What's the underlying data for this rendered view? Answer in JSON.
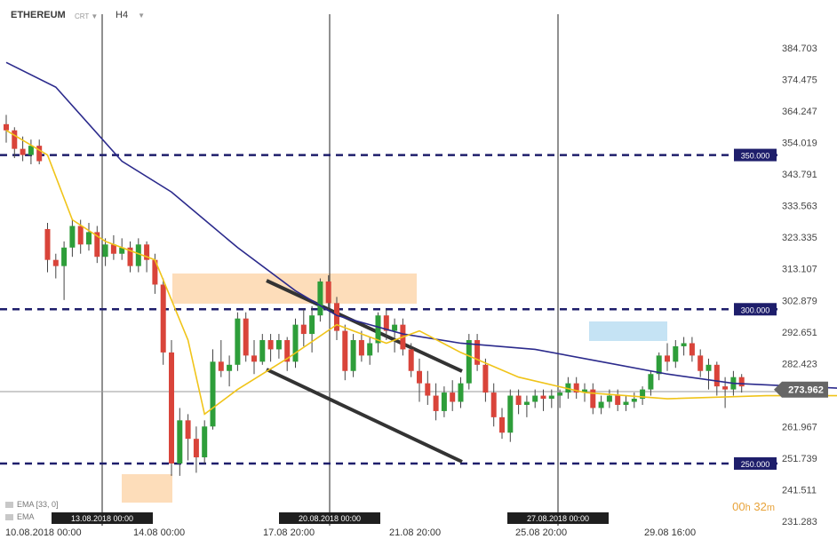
{
  "header": {
    "symbol": "ETHEREUM",
    "type": "CRT",
    "timeframe": "H4"
  },
  "indicators": [
    {
      "label": "EMA",
      "params": "[33, 0]"
    },
    {
      "label": "EMA",
      "params": ""
    }
  ],
  "timer": {
    "hours": "00",
    "h": "h",
    "minutes": "32",
    "m": "m"
  },
  "colors": {
    "bull": "#2e9e3a",
    "bear": "#d9443a",
    "ema_slow": "#2b2a8c",
    "ema_fast": "#f0c419",
    "level": "#1e1e6b",
    "zone_orange": "#fdd9b2",
    "zone_blue": "#bfe0f3",
    "current": "#666666"
  },
  "chart_data": {
    "type": "candlestick",
    "instrument": "ETHEREUM",
    "timeframe": "H4",
    "y_ticks": [
      "384.703",
      "374.475",
      "364.247",
      "354.019",
      "343.791",
      "333.563",
      "323.335",
      "313.107",
      "302.879",
      "292.651",
      "282.423",
      "273.962",
      "261.967",
      "251.739",
      "241.511",
      "231.283"
    ],
    "x_ticks": [
      "10.08.2018  00:00",
      "14.08  00:00",
      "17.08  20:00",
      "21.08  20:00",
      "25.08  20:00",
      "29.08  16:00"
    ],
    "horizontal_levels": [
      {
        "label": "350.000",
        "value": 350
      },
      {
        "label": "300.000",
        "value": 300
      },
      {
        "label": "250.000",
        "value": 250
      }
    ],
    "current_price": {
      "label": "273.962",
      "value": 273.962
    },
    "vertical_markers": [
      "13.08.2018 00:00",
      "20.08.2018 00:00",
      "27.08.2018 00:00"
    ],
    "ema_legend": [
      "EMA  [33, 0]",
      "EMA"
    ],
    "candles": [
      [
        360,
        363,
        354,
        358
      ],
      [
        358,
        359,
        349,
        352
      ],
      [
        352,
        356,
        348,
        350
      ],
      [
        350,
        355,
        347,
        353
      ],
      [
        353,
        355,
        347,
        348
      ],
      [
        326,
        328,
        312,
        316
      ],
      [
        316,
        318,
        310,
        314
      ],
      [
        314,
        322,
        303,
        320
      ],
      [
        320,
        329,
        317,
        327
      ],
      [
        327,
        329,
        318,
        321
      ],
      [
        321,
        328,
        319,
        325
      ],
      [
        325,
        327,
        315,
        317
      ],
      [
        317,
        323,
        314,
        321
      ],
      [
        321,
        324,
        316,
        318
      ],
      [
        318,
        323,
        316,
        320
      ],
      [
        320,
        322,
        312,
        314
      ],
      [
        314,
        323,
        312,
        321
      ],
      [
        321,
        322,
        312,
        316
      ],
      [
        316,
        318,
        305,
        308
      ],
      [
        308,
        310,
        282,
        286
      ],
      [
        286,
        290,
        246,
        250
      ],
      [
        250,
        268,
        246,
        264
      ],
      [
        264,
        266,
        251,
        258
      ],
      [
        258,
        262,
        247,
        252
      ],
      [
        252,
        264,
        250,
        262
      ],
      [
        262,
        287,
        261,
        283
      ],
      [
        283,
        290,
        278,
        280
      ],
      [
        280,
        285,
        275,
        282
      ],
      [
        282,
        299,
        280,
        297
      ],
      [
        297,
        299,
        283,
        285
      ],
      [
        285,
        290,
        279,
        283
      ],
      [
        283,
        292,
        282,
        290
      ],
      [
        290,
        292,
        283,
        287
      ],
      [
        287,
        292,
        284,
        290
      ],
      [
        290,
        291,
        280,
        283
      ],
      [
        283,
        297,
        281,
        295
      ],
      [
        295,
        300,
        288,
        292
      ],
      [
        292,
        301,
        286,
        298
      ],
      [
        298,
        310,
        296,
        309
      ],
      [
        309,
        311,
        300,
        302
      ],
      [
        302,
        304,
        290,
        293
      ],
      [
        293,
        295,
        277,
        280
      ],
      [
        280,
        292,
        278,
        290
      ],
      [
        290,
        293,
        283,
        285
      ],
      [
        285,
        291,
        282,
        289
      ],
      [
        289,
        299,
        286,
        298
      ],
      [
        298,
        300,
        290,
        293
      ],
      [
        293,
        297,
        286,
        295
      ],
      [
        295,
        297,
        285,
        287
      ],
      [
        287,
        289,
        278,
        280
      ],
      [
        280,
        284,
        270,
        276
      ],
      [
        276,
        280,
        269,
        272
      ],
      [
        272,
        276,
        264,
        267
      ],
      [
        267,
        275,
        265,
        273
      ],
      [
        273,
        277,
        267,
        270
      ],
      [
        270,
        278,
        268,
        276
      ],
      [
        276,
        292,
        274,
        290
      ],
      [
        290,
        292,
        280,
        282
      ],
      [
        282,
        284,
        270,
        273
      ],
      [
        273,
        276,
        262,
        265
      ],
      [
        265,
        268,
        258,
        260
      ],
      [
        260,
        274,
        257,
        272
      ],
      [
        272,
        274,
        266,
        269
      ],
      [
        269,
        272,
        265,
        270
      ],
      [
        270,
        274,
        268,
        272
      ],
      [
        272,
        274,
        267,
        271
      ],
      [
        271,
        274,
        268,
        272
      ],
      [
        272,
        274,
        268,
        273
      ],
      [
        273,
        278,
        271,
        276
      ],
      [
        276,
        278,
        271,
        273
      ],
      [
        273,
        276,
        270,
        274
      ],
      [
        274,
        276,
        266,
        268
      ],
      [
        268,
        272,
        266,
        270
      ],
      [
        270,
        274,
        268,
        272
      ],
      [
        272,
        274,
        267,
        269
      ],
      [
        269,
        272,
        267,
        270
      ],
      [
        270,
        273,
        268,
        271
      ],
      [
        271,
        275,
        269,
        274
      ],
      [
        274,
        280,
        272,
        279
      ],
      [
        279,
        286,
        277,
        285
      ],
      [
        285,
        289,
        280,
        283
      ],
      [
        283,
        290,
        281,
        288
      ],
      [
        288,
        291,
        285,
        289
      ],
      [
        289,
        291,
        283,
        285
      ],
      [
        285,
        287,
        278,
        280
      ],
      [
        280,
        284,
        274,
        282
      ],
      [
        282,
        283,
        272,
        275
      ],
      [
        275,
        278,
        268,
        274
      ],
      [
        274,
        280,
        272,
        278
      ],
      [
        278,
        279,
        273,
        275
      ]
    ],
    "ema_slow": [
      [
        0,
        380
      ],
      [
        6,
        372
      ],
      [
        14,
        348
      ],
      [
        20,
        338
      ],
      [
        28,
        320
      ],
      [
        35,
        306
      ],
      [
        40,
        298
      ],
      [
        48,
        292
      ],
      [
        55,
        289
      ],
      [
        64,
        287
      ],
      [
        72,
        283
      ],
      [
        80,
        279
      ],
      [
        88,
        276
      ],
      [
        96,
        275
      ],
      [
        104,
        274
      ],
      [
        112,
        274
      ],
      [
        120,
        277
      ],
      [
        126,
        279
      ],
      [
        132,
        277
      ]
    ],
    "ema_fast": [
      [
        0,
        358
      ],
      [
        5,
        350
      ],
      [
        8,
        329
      ],
      [
        12,
        322
      ],
      [
        18,
        316
      ],
      [
        22,
        290
      ],
      [
        24,
        266
      ],
      [
        28,
        274
      ],
      [
        34,
        284
      ],
      [
        40,
        295
      ],
      [
        46,
        289
      ],
      [
        50,
        293
      ],
      [
        55,
        286
      ],
      [
        62,
        278
      ],
      [
        70,
        273
      ],
      [
        80,
        271
      ],
      [
        92,
        272
      ],
      [
        104,
        272
      ],
      [
        112,
        278
      ],
      [
        118,
        286
      ],
      [
        124,
        281
      ],
      [
        132,
        277
      ]
    ]
  }
}
